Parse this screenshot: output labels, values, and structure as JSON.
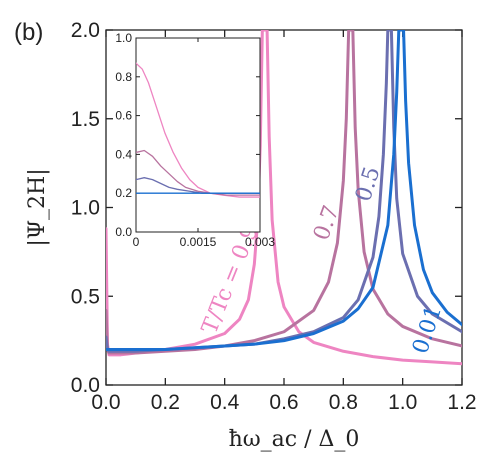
{
  "panel_label": "(b)",
  "colors": {
    "t09": "#ee85c2",
    "t07": "#b8739f",
    "t05": "#6b6fb0",
    "t001": "#1a6fd0"
  },
  "chart_data": [
    {
      "type": "line",
      "role": "main",
      "xlabel": "ħω_ac / Δ_0",
      "ylabel": "|Ψ_2H|",
      "xlim": [
        0.0,
        1.2
      ],
      "ylim": [
        0.0,
        2.0
      ],
      "xticks": [
        "0.0",
        "0.2",
        "0.4",
        "0.6",
        "0.8",
        "1.0",
        "1.2"
      ],
      "yticks": [
        "0.0",
        "0.5",
        "1.0",
        "1.5",
        "2.0"
      ],
      "grid": false,
      "series": [
        {
          "key": "t09",
          "name": "T/Tc = 0.9",
          "label_text": "T/Tc = 0.9",
          "resonance": 0.535,
          "points": [
            [
              0.0,
              0.88
            ],
            [
              0.005,
              0.23
            ],
            [
              0.01,
              0.17
            ],
            [
              0.05,
              0.17
            ],
            [
              0.1,
              0.18
            ],
            [
              0.2,
              0.2
            ],
            [
              0.3,
              0.23
            ],
            [
              0.4,
              0.29
            ],
            [
              0.45,
              0.37
            ],
            [
              0.48,
              0.48
            ],
            [
              0.5,
              0.68
            ],
            [
              0.51,
              0.9
            ],
            [
              0.52,
              1.35
            ],
            [
              0.527,
              2.0
            ],
            [
              0.543,
              2.0
            ],
            [
              0.55,
              1.4
            ],
            [
              0.56,
              0.93
            ],
            [
              0.58,
              0.58
            ],
            [
              0.6,
              0.44
            ],
            [
              0.65,
              0.3
            ],
            [
              0.7,
              0.24
            ],
            [
              0.8,
              0.19
            ],
            [
              0.9,
              0.16
            ],
            [
              1.0,
              0.14
            ],
            [
              1.1,
              0.13
            ],
            [
              1.2,
              0.12
            ]
          ]
        },
        {
          "key": "t07",
          "name": "0.7",
          "label_text": "0.7",
          "resonance": 0.825,
          "points": [
            [
              0.0,
              0.42
            ],
            [
              0.005,
              0.2
            ],
            [
              0.01,
              0.18
            ],
            [
              0.1,
              0.18
            ],
            [
              0.2,
              0.19
            ],
            [
              0.3,
              0.2
            ],
            [
              0.4,
              0.22
            ],
            [
              0.5,
              0.25
            ],
            [
              0.6,
              0.3
            ],
            [
              0.7,
              0.42
            ],
            [
              0.75,
              0.58
            ],
            [
              0.78,
              0.8
            ],
            [
              0.8,
              1.15
            ],
            [
              0.81,
              1.5
            ],
            [
              0.818,
              2.0
            ],
            [
              0.832,
              2.0
            ],
            [
              0.84,
              1.45
            ],
            [
              0.85,
              1.1
            ],
            [
              0.87,
              0.75
            ],
            [
              0.9,
              0.54
            ],
            [
              0.95,
              0.4
            ],
            [
              1.0,
              0.33
            ],
            [
              1.1,
              0.26
            ],
            [
              1.2,
              0.22
            ]
          ]
        },
        {
          "key": "t05",
          "name": "0.5",
          "label_text": "0.5",
          "resonance": 0.955,
          "points": [
            [
              0.0,
              0.27
            ],
            [
              0.005,
              0.2
            ],
            [
              0.01,
              0.19
            ],
            [
              0.1,
              0.19
            ],
            [
              0.2,
              0.2
            ],
            [
              0.3,
              0.21
            ],
            [
              0.4,
              0.22
            ],
            [
              0.5,
              0.23
            ],
            [
              0.6,
              0.26
            ],
            [
              0.7,
              0.3
            ],
            [
              0.8,
              0.38
            ],
            [
              0.85,
              0.48
            ],
            [
              0.9,
              0.72
            ],
            [
              0.92,
              0.95
            ],
            [
              0.935,
              1.3
            ],
            [
              0.945,
              1.7
            ],
            [
              0.95,
              2.0
            ],
            [
              0.962,
              2.0
            ],
            [
              0.97,
              1.45
            ],
            [
              0.98,
              1.05
            ],
            [
              1.0,
              0.74
            ],
            [
              1.05,
              0.5
            ],
            [
              1.1,
              0.4
            ],
            [
              1.2,
              0.3
            ]
          ]
        },
        {
          "key": "t001",
          "name": "0.01",
          "label_text": "0.01",
          "resonance": 0.995,
          "points": [
            [
              0.0,
              0.2
            ],
            [
              0.1,
              0.2
            ],
            [
              0.2,
              0.2
            ],
            [
              0.3,
              0.21
            ],
            [
              0.4,
              0.22
            ],
            [
              0.5,
              0.23
            ],
            [
              0.6,
              0.25
            ],
            [
              0.7,
              0.29
            ],
            [
              0.8,
              0.36
            ],
            [
              0.85,
              0.43
            ],
            [
              0.9,
              0.55
            ],
            [
              0.95,
              0.9
            ],
            [
              0.97,
              1.3
            ],
            [
              0.98,
              1.65
            ],
            [
              0.987,
              2.0
            ],
            [
              1.003,
              2.0
            ],
            [
              1.01,
              1.6
            ],
            [
              1.02,
              1.25
            ],
            [
              1.04,
              0.9
            ],
            [
              1.07,
              0.65
            ],
            [
              1.1,
              0.52
            ],
            [
              1.15,
              0.41
            ],
            [
              1.2,
              0.34
            ]
          ]
        }
      ]
    },
    {
      "type": "line",
      "role": "inset",
      "xlim": [
        0.0,
        0.003
      ],
      "ylim": [
        0.0,
        1.0
      ],
      "xticks": [
        "0",
        "0.0015",
        "0.003"
      ],
      "yticks": [
        "0.0",
        "0.2",
        "0.4",
        "0.6",
        "0.8",
        "1.0"
      ],
      "series": [
        {
          "key": "t09",
          "points": [
            [
              0.0,
              0.87
            ],
            [
              0.00015,
              0.84
            ],
            [
              0.0003,
              0.77
            ],
            [
              0.0005,
              0.64
            ],
            [
              0.0007,
              0.51
            ],
            [
              0.0009,
              0.41
            ],
            [
              0.0011,
              0.33
            ],
            [
              0.0013,
              0.27
            ],
            [
              0.0015,
              0.23
            ],
            [
              0.0018,
              0.2
            ],
            [
              0.0021,
              0.19
            ],
            [
              0.0025,
              0.18
            ],
            [
              0.003,
              0.18
            ]
          ]
        },
        {
          "key": "t07",
          "points": [
            [
              0.0,
              0.41
            ],
            [
              0.0002,
              0.42
            ],
            [
              0.0004,
              0.39
            ],
            [
              0.0006,
              0.34
            ],
            [
              0.0008,
              0.3
            ],
            [
              0.001,
              0.26
            ],
            [
              0.0012,
              0.23
            ],
            [
              0.0015,
              0.21
            ],
            [
              0.0018,
              0.2
            ],
            [
              0.0022,
              0.19
            ],
            [
              0.003,
              0.19
            ]
          ]
        },
        {
          "key": "t05",
          "points": [
            [
              0.0,
              0.27
            ],
            [
              0.0002,
              0.28
            ],
            [
              0.0004,
              0.27
            ],
            [
              0.0006,
              0.25
            ],
            [
              0.0008,
              0.23
            ],
            [
              0.001,
              0.22
            ],
            [
              0.0013,
              0.21
            ],
            [
              0.0016,
              0.2
            ],
            [
              0.002,
              0.2
            ],
            [
              0.003,
              0.2
            ]
          ]
        },
        {
          "key": "t001",
          "points": [
            [
              0.0,
              0.2
            ],
            [
              0.001,
              0.2
            ],
            [
              0.002,
              0.2
            ],
            [
              0.003,
              0.2
            ]
          ]
        }
      ]
    }
  ]
}
